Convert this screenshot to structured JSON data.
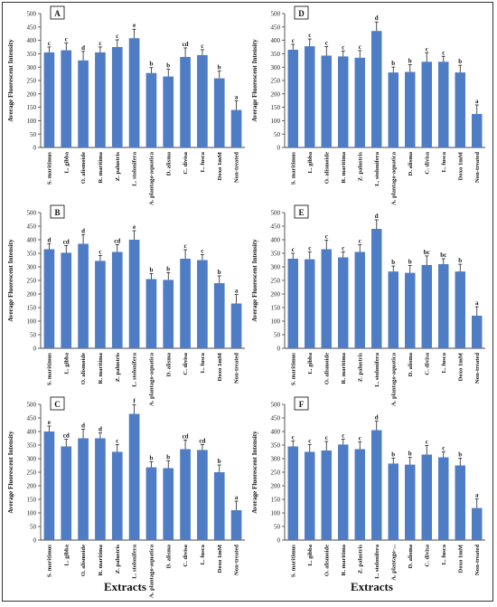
{
  "x_axis_title": "Extracts",
  "y_axis_title": "Average Fluorescent Intensity",
  "bar_color": "#4f7dc5",
  "chart_data": [
    {
      "type": "bar",
      "panel": "A",
      "categories": [
        "S. maritimus",
        "L. gibba",
        "O. alismoide",
        "R. maritima",
        "Z. palustris",
        "L. stolonifera",
        "A. plantago-aquatica",
        "D. alisma",
        "C. divisa",
        "L. fusca",
        "Doxo 1mM",
        "Non-treated"
      ],
      "values": [
        355,
        363,
        325,
        355,
        375,
        408,
        278,
        265,
        338,
        345,
        258,
        140
      ],
      "letters": [
        "c",
        "c",
        "d",
        "c",
        "c",
        "e",
        "b",
        "b",
        "cd",
        "c",
        "b",
        "a"
      ],
      "ylim": [
        0,
        500
      ],
      "yticks": [
        0,
        50,
        100,
        150,
        200,
        250,
        300,
        350,
        400,
        450,
        500
      ]
    },
    {
      "type": "bar",
      "panel": "D",
      "categories": [
        "S. maritimus",
        "L. gibba",
        "O. alismoide",
        "R. maritima",
        "Z. palustris",
        "L. stolonifera",
        "A. plantago-aquatica",
        "D. alisma",
        "C. divisa",
        "L. fusca",
        "Doxo 1mM",
        "Non-treated"
      ],
      "values": [
        365,
        378,
        343,
        340,
        335,
        435,
        280,
        282,
        320,
        320,
        280,
        125
      ],
      "letters": [
        "c",
        "c",
        "c",
        "c",
        "c",
        "d",
        "b",
        "b",
        "c",
        "c",
        "b",
        "a"
      ],
      "ylim": [
        0,
        500
      ],
      "yticks": [
        0,
        50,
        100,
        150,
        200,
        250,
        300,
        350,
        400,
        450,
        500
      ]
    },
    {
      "type": "bar",
      "panel": "B",
      "categories": [
        "S. maritimus",
        "L. gibba",
        "O. alismoide",
        "R. maritima",
        "Z. palustris",
        "L. stolonifera",
        "A. plantago-aquatica",
        "D. alisma",
        "C. divisa",
        "L. fusca",
        "Doxo 1mM",
        "Non-treated"
      ],
      "values": [
        365,
        352,
        385,
        322,
        355,
        400,
        255,
        252,
        330,
        325,
        240,
        165
      ],
      "letters": [
        "d",
        "cd",
        "d",
        "c",
        "cd",
        "e",
        "b",
        "b",
        "c",
        "c",
        "b",
        "a"
      ],
      "ylim": [
        0,
        500
      ],
      "yticks": [
        0,
        50,
        100,
        150,
        200,
        250,
        300,
        350,
        400,
        450,
        500
      ]
    },
    {
      "type": "bar",
      "panel": "E",
      "categories": [
        "S. maritimus",
        "L. gibba",
        "O. alismoide",
        "R. maritima",
        "Z. palustris",
        "L. stolonifera",
        "A. plantago-aquatica",
        "D. alisma",
        "C. divisa",
        "L. fusca",
        "Doxo 1mM",
        "Non-treated"
      ],
      "values": [
        330,
        328,
        365,
        335,
        355,
        440,
        283,
        278,
        307,
        310,
        283,
        120
      ],
      "letters": [
        "c",
        "c",
        "c",
        "c",
        "c",
        "d",
        "b",
        "b",
        "bc",
        "bc",
        "b",
        "a"
      ],
      "ylim": [
        0,
        500
      ],
      "yticks": [
        0,
        50,
        100,
        150,
        200,
        250,
        300,
        350,
        400,
        450,
        500
      ]
    },
    {
      "type": "bar",
      "panel": "C",
      "categories": [
        "S. maritimus",
        "L. gibba",
        "O. alismoide",
        "R. maritima",
        "Z. palustris",
        "L. stolonifera",
        "A. plantago-aquatica",
        "D. alisma",
        "C. divisa",
        "L. fusca",
        "Doxo 1mM",
        "Non-treated"
      ],
      "values": [
        400,
        345,
        375,
        375,
        325,
        465,
        268,
        265,
        335,
        332,
        250,
        110
      ],
      "letters": [
        "e",
        "cd",
        "d",
        "d",
        "c",
        "f",
        "b",
        "b",
        "cd",
        "cd",
        "b",
        "a"
      ],
      "ylim": [
        0,
        500
      ],
      "yticks": [
        0,
        50,
        100,
        150,
        200,
        250,
        300,
        350,
        400,
        450,
        500
      ]
    },
    {
      "type": "bar",
      "panel": "F",
      "categories": [
        "S. maritimus",
        "L. gibba",
        "O. alismoide",
        "R. maritima",
        "Z. palustris",
        "L. stolonifera",
        "A. plantago-...",
        "D. alisma",
        "C. divisa",
        "L. fusca",
        "Doxo 1mM",
        "Non-treated"
      ],
      "values": [
        345,
        325,
        330,
        352,
        335,
        405,
        282,
        278,
        315,
        305,
        275,
        118
      ],
      "letters": [
        "c",
        "c",
        "c",
        "c",
        "c",
        "d",
        "b",
        "b",
        "c",
        "c",
        "b",
        "a"
      ],
      "ylim": [
        0,
        500
      ],
      "yticks": [
        0,
        50,
        100,
        150,
        200,
        250,
        300,
        350,
        400,
        450,
        500
      ]
    }
  ]
}
